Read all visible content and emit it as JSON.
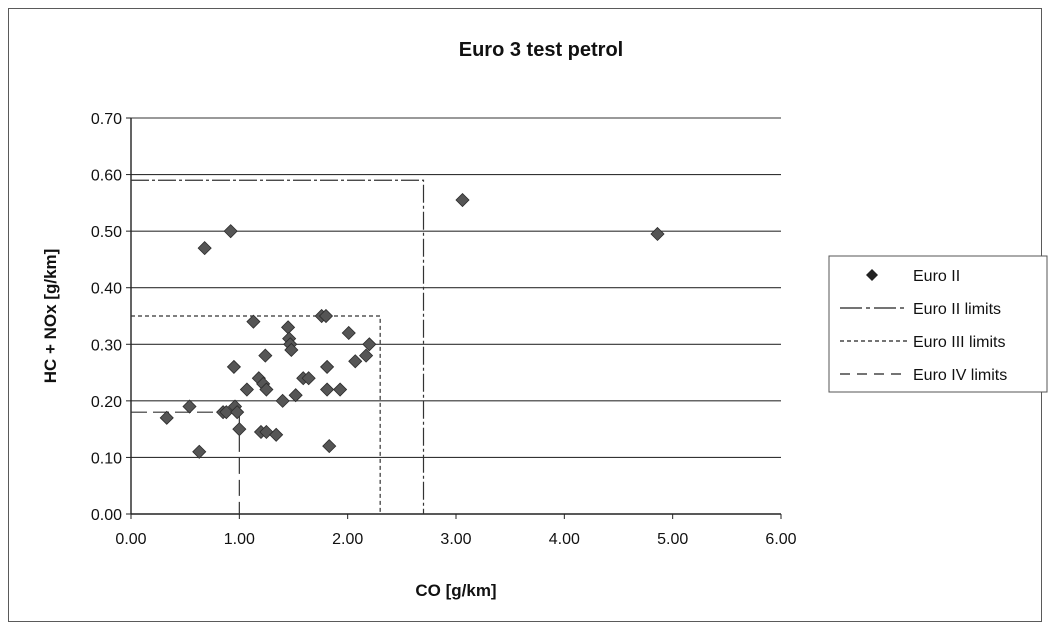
{
  "chart_data": {
    "type": "scatter",
    "title": "Euro 3 test petrol",
    "xlabel": "CO [g/km]",
    "ylabel": "HC + NOx [g/km]",
    "xlim": [
      0,
      6
    ],
    "ylim": [
      0,
      0.7
    ],
    "xticks": [
      "0.00",
      "1.00",
      "2.00",
      "3.00",
      "4.00",
      "5.00",
      "6.00"
    ],
    "yticks": [
      "0.00",
      "0.10",
      "0.20",
      "0.30",
      "0.40",
      "0.50",
      "0.60",
      "0.70"
    ],
    "grid": "horizontal",
    "legend_position": "right",
    "legend": [
      {
        "label": "Euro II",
        "style": "marker"
      },
      {
        "label": "Euro II limits",
        "style": "long-dash"
      },
      {
        "label": "Euro III limits",
        "style": "short-dash"
      },
      {
        "label": "Euro IV limits",
        "style": "medium-dash"
      }
    ],
    "series": [
      {
        "name": "Euro II",
        "marker": "diamond",
        "color": "#555555",
        "points": [
          [
            0.33,
            0.17
          ],
          [
            0.54,
            0.19
          ],
          [
            0.63,
            0.11
          ],
          [
            0.68,
            0.47
          ],
          [
            0.85,
            0.18
          ],
          [
            0.88,
            0.18
          ],
          [
            0.92,
            0.5
          ],
          [
            0.95,
            0.26
          ],
          [
            0.96,
            0.19
          ],
          [
            0.98,
            0.18
          ],
          [
            1.0,
            0.15
          ],
          [
            1.07,
            0.22
          ],
          [
            1.13,
            0.34
          ],
          [
            1.18,
            0.24
          ],
          [
            1.2,
            0.145
          ],
          [
            1.22,
            0.23
          ],
          [
            1.24,
            0.28
          ],
          [
            1.25,
            0.22
          ],
          [
            1.25,
            0.145
          ],
          [
            1.34,
            0.14
          ],
          [
            1.4,
            0.2
          ],
          [
            1.45,
            0.33
          ],
          [
            1.46,
            0.31
          ],
          [
            1.47,
            0.3
          ],
          [
            1.48,
            0.29
          ],
          [
            1.52,
            0.21
          ],
          [
            1.59,
            0.24
          ],
          [
            1.64,
            0.24
          ],
          [
            1.76,
            0.35
          ],
          [
            1.8,
            0.35
          ],
          [
            1.81,
            0.26
          ],
          [
            1.81,
            0.22
          ],
          [
            1.83,
            0.12
          ],
          [
            1.93,
            0.22
          ],
          [
            2.01,
            0.32
          ],
          [
            2.07,
            0.27
          ],
          [
            2.17,
            0.28
          ],
          [
            2.2,
            0.3
          ],
          [
            3.06,
            0.555
          ],
          [
            4.86,
            0.495
          ]
        ]
      }
    ],
    "limits": [
      {
        "name": "Euro II limits",
        "co": 2.7,
        "hc_nox": 0.59
      },
      {
        "name": "Euro III limits",
        "co": 2.3,
        "hc_nox": 0.35
      },
      {
        "name": "Euro IV limits",
        "co": 1.0,
        "hc_nox": 0.18
      }
    ]
  }
}
